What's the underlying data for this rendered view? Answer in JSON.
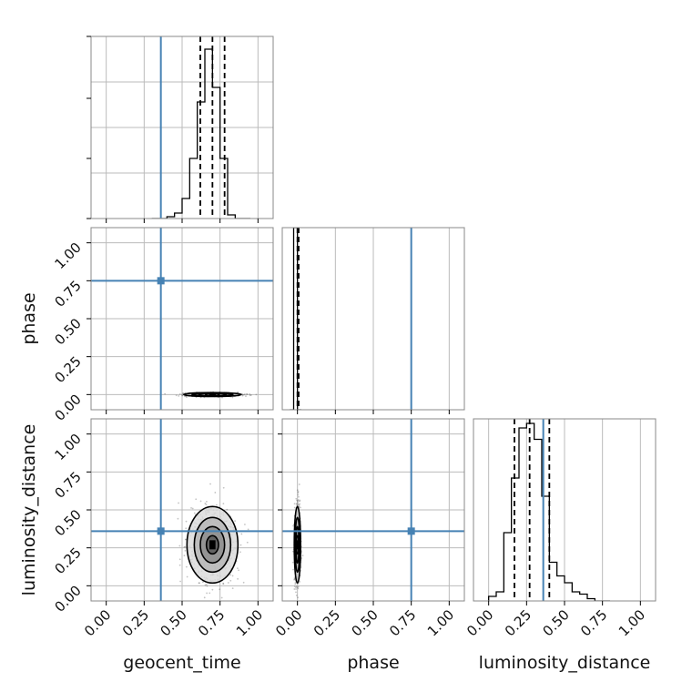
{
  "chart_data": {
    "type": "corner",
    "parameters": [
      "geocent_time",
      "phase",
      "luminosity_distance"
    ],
    "axis_range": [
      -0.1,
      1.1
    ],
    "tick_values": [
      0.0,
      0.25,
      0.5,
      0.75,
      1.0
    ],
    "tick_labels": [
      "0.00",
      "0.25",
      "0.50",
      "0.75",
      "1.00"
    ],
    "grid": true,
    "colors": {
      "truth": "#4682b4",
      "hist": "#000000",
      "points": "#555555"
    },
    "truths": {
      "geocent_time": 0.36,
      "phase": 0.75,
      "luminosity_distance": 0.36
    },
    "marginals": {
      "geocent_time": {
        "bin_edges": [
          0.3,
          0.35,
          0.4,
          0.45,
          0.5,
          0.55,
          0.6,
          0.65,
          0.7,
          0.75,
          0.8,
          0.85,
          0.9,
          0.95
        ],
        "counts": [
          0,
          0,
          1,
          3,
          11,
          33,
          64,
          93,
          72,
          33,
          2,
          0,
          0
        ],
        "quantiles": [
          0.62,
          0.7,
          0.78
        ],
        "ymax": 100
      },
      "phase": {
        "bin_edges": [
          -0.05,
          -0.025,
          0.0,
          0.025
        ],
        "counts": [
          0,
          100,
          0
        ],
        "quantiles": [
          0.0,
          0.003,
          0.008
        ],
        "ymax": 100
      },
      "luminosity_distance": {
        "bin_edges": [
          0.0,
          0.05,
          0.1,
          0.15,
          0.2,
          0.25,
          0.3,
          0.35,
          0.4,
          0.45,
          0.5,
          0.55,
          0.6,
          0.65,
          0.7,
          0.75,
          0.8
        ],
        "counts": [
          2,
          4,
          30,
          54,
          76,
          78,
          71,
          46,
          17,
          11,
          8,
          4,
          3,
          1,
          0,
          0
        ],
        "quantiles": [
          0.17,
          0.27,
          0.4
        ],
        "ymax": 80
      }
    },
    "joint": [
      {
        "x": "geocent_time",
        "y": "phase",
        "center": [
          0.7,
          0.0
        ],
        "spread": [
          0.09,
          0.006
        ]
      },
      {
        "x": "geocent_time",
        "y": "luminosity_distance",
        "center": [
          0.7,
          0.27
        ],
        "spread": [
          0.08,
          0.12
        ]
      },
      {
        "x": "phase",
        "y": "luminosity_distance",
        "center": [
          0.0,
          0.27
        ],
        "spread": [
          0.01,
          0.12
        ]
      }
    ]
  }
}
